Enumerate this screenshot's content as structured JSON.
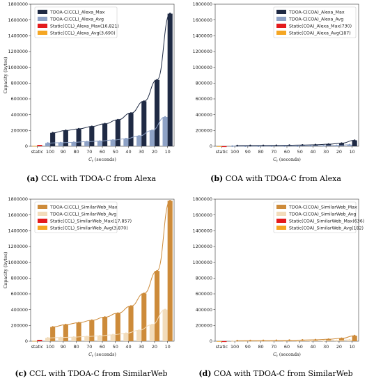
{
  "chart_data": [
    {
      "id": "a",
      "type": "bar",
      "caption_tag": "(a)",
      "caption_text": "CCL with TDOA-C from Alexa",
      "xlabel": "C_t (seconds)",
      "ylabel": "Capacity (bytes)",
      "ylim": [
        0,
        1800000
      ],
      "yticks": [
        "0",
        "200000",
        "400000",
        "600000",
        "800000",
        "1000000",
        "1200000",
        "1400000",
        "1600000",
        "1800000"
      ],
      "categories": [
        "static",
        "100",
        "90",
        "80",
        "70",
        "60",
        "50",
        "40",
        "30",
        "20",
        "10"
      ],
      "legend_position": "top-left",
      "series": [
        {
          "name": "TDOA-C(CCL)_Alexa_Max",
          "color": "#1f2a44",
          "kind": "bar-max",
          "values": [
            null,
            170000,
            200000,
            220000,
            250000,
            285000,
            335000,
            420000,
            570000,
            840000,
            1680000
          ]
        },
        {
          "name": "TDOA-C(CCL)_Alexa_Avg",
          "color": "#8ea2c6",
          "kind": "bar-avg",
          "values": [
            null,
            40000,
            45000,
            50000,
            58000,
            65000,
            78000,
            95000,
            130000,
            200000,
            370000
          ]
        },
        {
          "name": "Static(CCL)_Alexa_Max(16,821)",
          "color": "#e41a1c",
          "kind": "static-max",
          "values": [
            16821,
            null,
            null,
            null,
            null,
            null,
            null,
            null,
            null,
            null,
            null
          ]
        },
        {
          "name": "Static(CCL)_Alexa_Avg(3,690)",
          "color": "#f5a623",
          "kind": "static-avg",
          "values": [
            3690,
            null,
            null,
            null,
            null,
            null,
            null,
            null,
            null,
            null,
            null
          ]
        }
      ]
    },
    {
      "id": "b",
      "type": "bar",
      "caption_tag": "(b)",
      "caption_text": "COA with TDOA-C from Alexa",
      "xlabel": "C_t (seconds)",
      "ylabel": "",
      "ylim": [
        0,
        1800000
      ],
      "yticks": [
        "0",
        "200000",
        "400000",
        "600000",
        "800000",
        "1000000",
        "1200000",
        "1400000",
        "1600000",
        "1800000"
      ],
      "categories": [
        "static",
        "100",
        "90",
        "80",
        "70",
        "60",
        "50",
        "40",
        "30",
        "20",
        "10"
      ],
      "legend_position": "top-right",
      "series": [
        {
          "name": "TDOA-C(COA)_Alexa_Max",
          "color": "#1f2a44",
          "kind": "bar-max",
          "values": [
            null,
            8000,
            9000,
            10000,
            11000,
            13000,
            15000,
            19000,
            26000,
            38000,
            75000
          ]
        },
        {
          "name": "TDOA-C(COA)_Alexa_Avg",
          "color": "#8ea2c6",
          "kind": "bar-avg",
          "values": [
            null,
            2000,
            2200,
            2500,
            2800,
            3200,
            3800,
            4800,
            6500,
            9500,
            19000
          ]
        },
        {
          "name": "Static(COA)_Alexa_Max(730)",
          "color": "#e41a1c",
          "kind": "static-max",
          "values": [
            730,
            null,
            null,
            null,
            null,
            null,
            null,
            null,
            null,
            null,
            null
          ]
        },
        {
          "name": "Static(COA)_Alexa_Avg(187)",
          "color": "#f5a623",
          "kind": "static-avg",
          "values": [
            187,
            null,
            null,
            null,
            null,
            null,
            null,
            null,
            null,
            null,
            null
          ]
        }
      ]
    },
    {
      "id": "c",
      "type": "bar",
      "caption_tag": "(c)",
      "caption_text": "CCL with TDOA-C from SimilarWeb",
      "xlabel": "C_t (seconds)",
      "ylabel": "Capacity (bytes)",
      "ylim": [
        0,
        1800000
      ],
      "yticks": [
        "0",
        "200000",
        "400000",
        "600000",
        "800000",
        "1000000",
        "1200000",
        "1400000",
        "1600000",
        "1800000"
      ],
      "categories": [
        "static",
        "100",
        "90",
        "80",
        "70",
        "60",
        "50",
        "40",
        "30",
        "20",
        "10"
      ],
      "legend_position": "top-left",
      "series": [
        {
          "name": "TDOA-C(CCL)_SimilarWeb_Max",
          "color": "#cd8b3a",
          "kind": "bar-max",
          "values": [
            null,
            180000,
            210000,
            235000,
            265000,
            305000,
            355000,
            445000,
            605000,
            890000,
            1780000
          ]
        },
        {
          "name": "TDOA-C(CCL)_SimilarWeb_Avg",
          "color": "#f2dcbb",
          "kind": "bar-avg",
          "values": [
            null,
            42000,
            47000,
            52000,
            60000,
            68000,
            82000,
            100000,
            138000,
            210000,
            400000
          ]
        },
        {
          "name": "Static(CCL)_SimilarWeb_Max(17,857)",
          "color": "#e41a1c",
          "kind": "static-max",
          "values": [
            17857,
            null,
            null,
            null,
            null,
            null,
            null,
            null,
            null,
            null,
            null
          ]
        },
        {
          "name": "Static(CCL)_SimilarWeb_Avg(3,870)",
          "color": "#f5a623",
          "kind": "static-avg",
          "values": [
            3870,
            null,
            null,
            null,
            null,
            null,
            null,
            null,
            null,
            null,
            null
          ]
        }
      ]
    },
    {
      "id": "d",
      "type": "bar",
      "caption_tag": "(d)",
      "caption_text": "COA with TDOA-C from SimilarWeb",
      "xlabel": "C_t (seconds)",
      "ylabel": "",
      "ylim": [
        0,
        1800000
      ],
      "yticks": [
        "0",
        "200000",
        "400000",
        "600000",
        "800000",
        "1000000",
        "1200000",
        "1400000",
        "1600000",
        "1800000"
      ],
      "categories": [
        "static",
        "100",
        "90",
        "80",
        "70",
        "60",
        "50",
        "40",
        "30",
        "20",
        "10"
      ],
      "legend_position": "top-right",
      "series": [
        {
          "name": "TDOA-C(COA)_SimilarWeb_Max",
          "color": "#cd8b3a",
          "kind": "bar-max",
          "values": [
            null,
            7500,
            8500,
            9500,
            11000,
            12500,
            14500,
            18000,
            25000,
            36000,
            70000
          ]
        },
        {
          "name": "TDOA-C(COA)_SimilarWeb_Avg",
          "color": "#f2dcbb",
          "kind": "bar-avg",
          "values": [
            null,
            1900,
            2100,
            2400,
            2700,
            3100,
            3600,
            4500,
            6200,
            9000,
            18000
          ]
        },
        {
          "name": "Static(COA)_SimilarWeb_Max(636)",
          "color": "#e41a1c",
          "kind": "static-max",
          "values": [
            636,
            null,
            null,
            null,
            null,
            null,
            null,
            null,
            null,
            null,
            null
          ]
        },
        {
          "name": "Static(COA)_SimilarWeb_Avg(182)",
          "color": "#f5a623",
          "kind": "static-avg",
          "values": [
            182,
            null,
            null,
            null,
            null,
            null,
            null,
            null,
            null,
            null,
            null
          ]
        }
      ]
    }
  ]
}
